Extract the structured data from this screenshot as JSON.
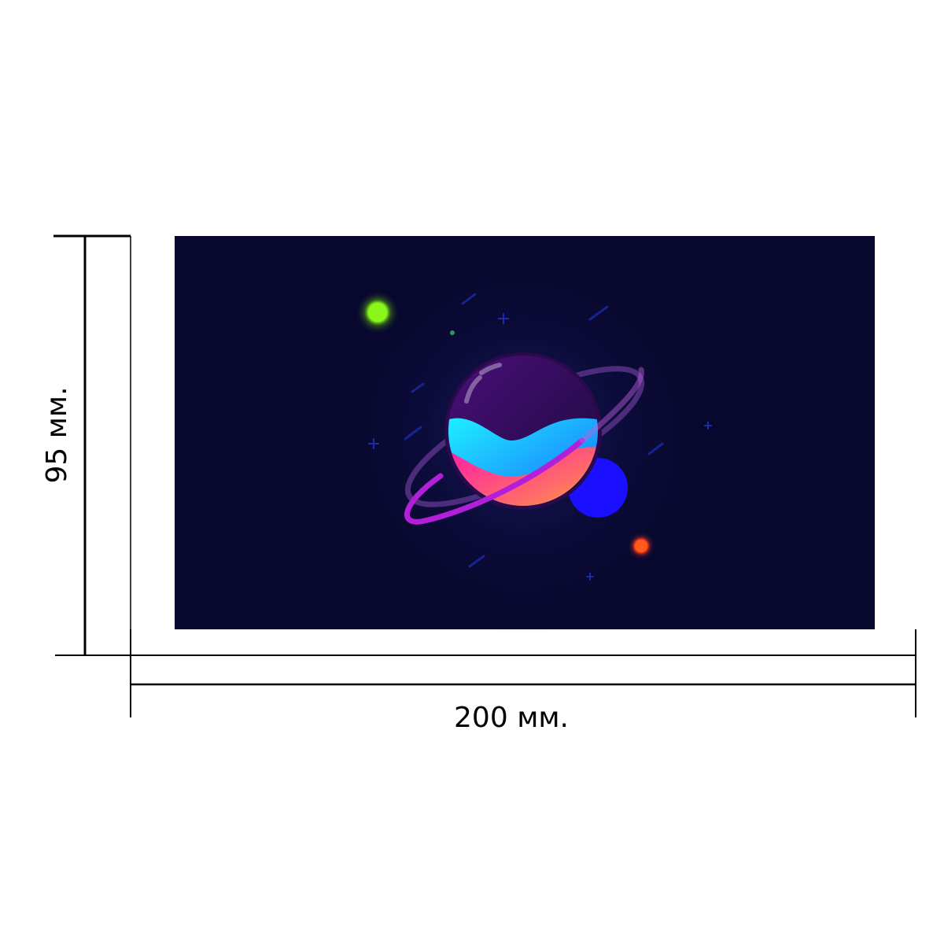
{
  "dimensions": {
    "height_label": "95 мм.",
    "width_label": "200 мм."
  },
  "artwork": {
    "background_color": "#08082e",
    "ring_color": "#b21fd8",
    "small_planet_color": "#1a0fff",
    "green_star_color": "#7cff1a",
    "orange_star_color": "#ff5a1a"
  }
}
